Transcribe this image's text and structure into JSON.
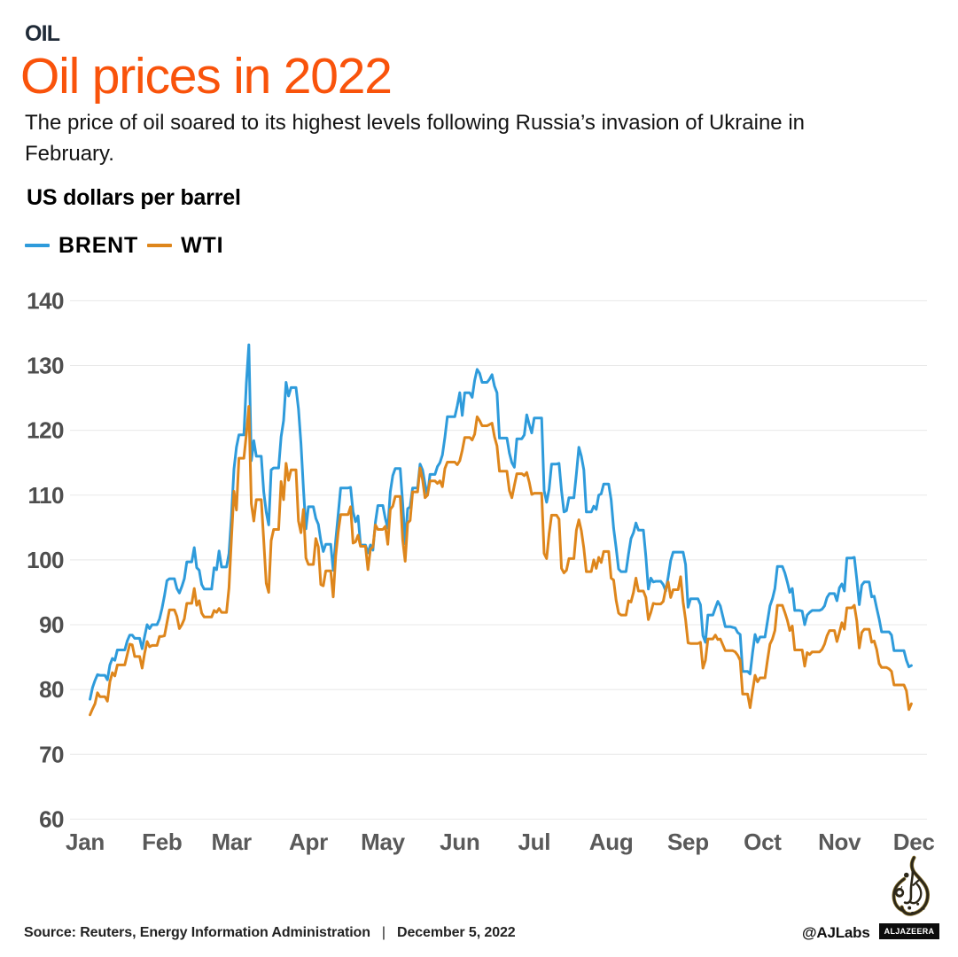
{
  "header": {
    "kicker": "OIL",
    "title": "Oil prices in 2022",
    "title_color": "#f9530b",
    "subtitle_lines": [
      "The price of oil soared to its highest levels following Russia’s invasion of Ukraine in",
      "February."
    ],
    "unit_label": "US dollars per barrel"
  },
  "chart_data": {
    "type": "line",
    "title": "Oil prices in 2022",
    "ylabel": "US dollars per barrel",
    "xlabel": "",
    "ylim": [
      60,
      140
    ],
    "y_ticks": [
      140,
      130,
      120,
      110,
      100,
      90,
      80,
      70,
      60
    ],
    "x_tick_labels": [
      "Jan",
      "Feb",
      "Mar",
      "Apr",
      "May",
      "Jun",
      "Jul",
      "Aug",
      "Sep",
      "Oct",
      "Nov",
      "Dec"
    ],
    "x_axis": "days of 2022 (Jan 3 - Nov 30, weekends repeat Friday value)",
    "start_day_of_year": 2,
    "grid": "horizontal",
    "legend_position": "top-left",
    "series": [
      {
        "name": "BRENT",
        "color": "#2e9bdb",
        "values": [
          78.5,
          80.3,
          81.4,
          82.3,
          82.2,
          82.2,
          82.2,
          81.5,
          83.8,
          84.8,
          84.5,
          86.1,
          86.1,
          86.1,
          86.1,
          87.5,
          88.4,
          88.4,
          87.9,
          87.9,
          87.9,
          86.3,
          88.2,
          90.0,
          89.4,
          90.0,
          90.0,
          90.0,
          90.9,
          92.5,
          94.5,
          96.8,
          97.1,
          97.1,
          97.1,
          95.6,
          94.9,
          95.9,
          97.1,
          99.7,
          99.7,
          99.7,
          101.9,
          98.8,
          98.4,
          96.2,
          95.5,
          95.5,
          95.5,
          95.5,
          98.8,
          98.5,
          101.4,
          98.9,
          98.9,
          98.9,
          101.0,
          106.8,
          114.0,
          117.4,
          119.3,
          119.3,
          119.3,
          127.3,
          133.2,
          115.3,
          118.4,
          116.0,
          116.0,
          116.0,
          110.5,
          107.4,
          105.4,
          113.9,
          114.2,
          114.2,
          114.2,
          119.0,
          121.5,
          127.4,
          125.3,
          126.6,
          126.6,
          126.6,
          123.3,
          118.0,
          111.0,
          104.8,
          108.2,
          108.2,
          108.2,
          106.4,
          105.5,
          103.0,
          101.3,
          102.4,
          102.4,
          102.4,
          98.4,
          103.0,
          107.0,
          111.1,
          111.1,
          111.1,
          111.1,
          111.2,
          107.4,
          105.9,
          106.8,
          102.3,
          102.3,
          102.3,
          101.1,
          102.3,
          101.5,
          105.8,
          108.4,
          108.4,
          108.4,
          106.4,
          104.9,
          110.5,
          113.0,
          114.1,
          114.1,
          114.1,
          108.7,
          102.5,
          107.9,
          108.2,
          111.1,
          111.1,
          111.1,
          114.8,
          113.9,
          111.7,
          110.0,
          113.2,
          113.2,
          113.2,
          114.4,
          115.0,
          116.2,
          118.9,
          122.1,
          122.1,
          122.1,
          122.1,
          123.8,
          125.8,
          122.3,
          125.8,
          125.8,
          125.8,
          125.1,
          127.7,
          129.4,
          128.8,
          127.4,
          127.4,
          127.4,
          127.9,
          128.6,
          126.8,
          125.8,
          118.8,
          118.8,
          118.8,
          118.8,
          116.5,
          115.0,
          114.3,
          118.7,
          118.7,
          118.7,
          119.3,
          122.4,
          120.9,
          119.6,
          121.9,
          121.9,
          121.9,
          121.9,
          110.7,
          108.9,
          110.9,
          114.8,
          114.8,
          114.8,
          114.9,
          110.7,
          107.4,
          107.6,
          109.6,
          109.6,
          109.6,
          113.3,
          117.4,
          116.0,
          113.9,
          107.4,
          107.4,
          107.4,
          108.3,
          107.8,
          110.0,
          110.2,
          111.7,
          111.7,
          111.7,
          109.3,
          104.9,
          101.9,
          98.6,
          98.2,
          98.2,
          98.2,
          100.9,
          103.3,
          104.2,
          105.7,
          104.6,
          104.6,
          104.6,
          100.5,
          95.5,
          97.2,
          96.6,
          96.7,
          96.7,
          96.7,
          96.2,
          95.2,
          97.4,
          99.9,
          101.2,
          101.2,
          101.2,
          101.2,
          101.2,
          99.3,
          92.7,
          94.0,
          94.0,
          94.0,
          94.0,
          93.1,
          88.3,
          87.3,
          91.5,
          91.5,
          91.5,
          92.6,
          93.6,
          92.9,
          91.3,
          89.7,
          89.7,
          89.7,
          89.6,
          89.5,
          88.8,
          88.5,
          82.8,
          82.8,
          82.8,
          82.4,
          85.7,
          88.5,
          87.3,
          88.1,
          88.1,
          88.1,
          90.5,
          92.9,
          94.0,
          95.6,
          99.0,
          99.0,
          99.0,
          98.0,
          96.6,
          95.0,
          95.6,
          92.2,
          92.2,
          92.2,
          92.1,
          90.0,
          91.5,
          91.9,
          92.2,
          92.2,
          92.2,
          92.2,
          92.4,
          92.9,
          94.2,
          94.8,
          94.8,
          94.8,
          93.7,
          95.7,
          96.3,
          95.2,
          100.3,
          100.3,
          100.3,
          100.4,
          97.0,
          93.1,
          96.1,
          96.6,
          96.6,
          96.6,
          94.3,
          94.4,
          92.6,
          90.9,
          88.9,
          88.9,
          88.9,
          88.9,
          88.4,
          86.0,
          86.0,
          86.0,
          86.0,
          86.0,
          84.5,
          83.5,
          83.7
        ]
      },
      {
        "name": "WTI",
        "color": "#de861c",
        "values": [
          76.1,
          77.0,
          77.8,
          79.5,
          78.9,
          78.9,
          78.9,
          78.2,
          81.2,
          82.6,
          82.1,
          83.8,
          83.8,
          83.8,
          83.8,
          85.4,
          87.0,
          86.9,
          85.1,
          85.1,
          85.1,
          83.3,
          85.6,
          87.4,
          86.6,
          86.8,
          86.8,
          86.8,
          88.2,
          88.2,
          88.3,
          90.3,
          92.3,
          92.3,
          92.3,
          91.3,
          89.4,
          90.0,
          90.9,
          93.3,
          93.3,
          93.3,
          95.6,
          93.0,
          93.7,
          91.8,
          91.2,
          91.2,
          91.2,
          91.2,
          92.2,
          91.9,
          92.5,
          91.9,
          91.9,
          91.9,
          95.7,
          103.4,
          110.6,
          107.7,
          115.7,
          115.7,
          115.7,
          119.4,
          123.7,
          108.7,
          106.0,
          109.3,
          109.3,
          109.3,
          103.0,
          96.4,
          95.0,
          103.0,
          104.7,
          104.7,
          104.7,
          112.1,
          109.3,
          114.9,
          112.3,
          113.9,
          113.9,
          113.9,
          106.0,
          104.2,
          107.8,
          100.3,
          99.3,
          99.3,
          99.3,
          103.3,
          102.0,
          96.2,
          96.0,
          98.3,
          98.3,
          98.3,
          94.3,
          100.6,
          104.3,
          107.0,
          107.0,
          107.0,
          107.0,
          108.2,
          102.6,
          102.8,
          103.8,
          102.1,
          102.1,
          102.1,
          98.5,
          101.7,
          102.0,
          105.4,
          104.7,
          104.7,
          104.7,
          105.2,
          102.4,
          107.8,
          108.3,
          109.8,
          109.8,
          109.8,
          103.1,
          99.8,
          105.7,
          106.1,
          110.5,
          110.5,
          110.5,
          114.2,
          112.4,
          109.6,
          110.0,
          112.2,
          112.2,
          112.2,
          111.8,
          112.2,
          111.3,
          114.1,
          115.1,
          115.1,
          115.1,
          115.1,
          114.7,
          115.3,
          116.9,
          118.9,
          118.9,
          118.9,
          118.5,
          119.4,
          122.1,
          121.5,
          120.7,
          120.7,
          120.7,
          120.9,
          121.1,
          119.0,
          117.6,
          113.7,
          113.7,
          113.7,
          113.7,
          110.7,
          109.6,
          111.5,
          113.3,
          113.3,
          113.3,
          113.0,
          113.5,
          112.0,
          110.1,
          110.3,
          110.3,
          110.3,
          110.3,
          101.0,
          100.2,
          104.0,
          106.9,
          106.9,
          106.9,
          106.3,
          98.7,
          98.0,
          98.4,
          100.2,
          100.2,
          100.2,
          104.6,
          106.2,
          104.5,
          101.8,
          98.2,
          98.2,
          98.2,
          100.0,
          98.7,
          100.4,
          99.6,
          101.3,
          101.3,
          101.3,
          97.2,
          96.9,
          93.8,
          91.8,
          91.5,
          91.5,
          91.5,
          93.7,
          93.5,
          95.0,
          97.2,
          95.2,
          95.2,
          95.2,
          94.2,
          90.8,
          91.9,
          93.3,
          93.2,
          93.2,
          93.2,
          93.6,
          95.5,
          96.6,
          94.2,
          95.4,
          95.4,
          95.4,
          97.4,
          93.5,
          90.8,
          87.2,
          87.1,
          87.1,
          87.1,
          87.1,
          87.3,
          83.3,
          84.5,
          87.8,
          87.8,
          87.8,
          88.4,
          87.7,
          87.8,
          86.9,
          86.0,
          86.0,
          86.0,
          86.0,
          85.8,
          85.3,
          84.5,
          79.3,
          79.3,
          79.3,
          77.2,
          79.8,
          82.2,
          81.2,
          81.8,
          81.8,
          81.8,
          84.5,
          87.0,
          87.8,
          89.1,
          93.0,
          93.0,
          93.0,
          91.9,
          90.7,
          89.1,
          89.8,
          86.1,
          86.1,
          86.1,
          86.1,
          83.6,
          85.7,
          85.4,
          85.8,
          85.8,
          85.8,
          85.8,
          86.2,
          87.0,
          88.3,
          89.1,
          89.1,
          89.1,
          87.4,
          88.8,
          90.3,
          89.3,
          92.6,
          92.6,
          92.6,
          93.0,
          90.6,
          86.4,
          88.8,
          89.3,
          89.3,
          89.3,
          87.3,
          87.5,
          86.2,
          84.0,
          83.4,
          83.4,
          83.4,
          83.2,
          82.8,
          80.7,
          80.7,
          80.7,
          80.7,
          80.7,
          79.8,
          76.9,
          77.8
        ]
      }
    ]
  },
  "footer": {
    "source_text": "Source: Reuters, Energy Information Administration",
    "divider": "|",
    "date_text": "December 5, 2022",
    "credit": "@AJLabs",
    "brand_badge": "ALJAZEERA"
  }
}
